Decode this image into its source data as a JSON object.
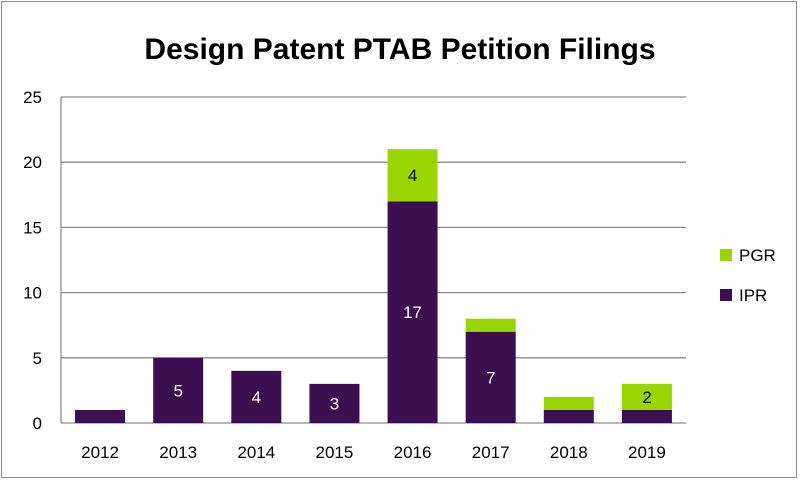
{
  "chart_data": {
    "type": "bar",
    "stacked": true,
    "title": "Design Patent PTAB Petition Filings",
    "categories": [
      "2012",
      "2013",
      "2014",
      "2015",
      "2016",
      "2017",
      "2018",
      "2019"
    ],
    "series": [
      {
        "name": "IPR",
        "color": "#3b0f50",
        "values": [
          1,
          5,
          4,
          3,
          17,
          7,
          1,
          1
        ],
        "data_labels": [
          "",
          "5",
          "4",
          "3",
          "17",
          "7",
          "",
          ""
        ]
      },
      {
        "name": "PGR",
        "color": "#99d600",
        "values": [
          0,
          0,
          0,
          0,
          4,
          1,
          1,
          2
        ],
        "data_labels": [
          "",
          "",
          "",
          "",
          "4",
          "",
          "",
          "2"
        ]
      }
    ],
    "ylim": [
      0,
      25
    ],
    "yticks": [
      "0",
      "5",
      "10",
      "15",
      "20",
      "25"
    ],
    "grid": true,
    "legend_position": "right"
  }
}
